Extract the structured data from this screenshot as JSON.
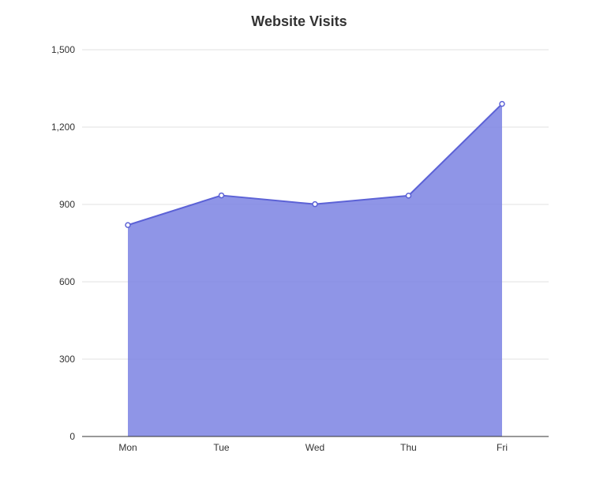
{
  "chart_data": {
    "type": "area",
    "title": "Website Visits",
    "xlabel": "",
    "ylabel": "",
    "categories": [
      "Mon",
      "Tue",
      "Wed",
      "Thu",
      "Fri"
    ],
    "values": [
      820,
      935,
      901,
      934,
      1290
    ],
    "ylim": [
      0,
      1500
    ],
    "y_ticks": [
      0,
      300,
      600,
      900,
      1200,
      1500
    ],
    "y_tick_labels": [
      "0",
      "300",
      "600",
      "900",
      "1,200",
      "1,500"
    ],
    "grid": true,
    "legend": "none",
    "colors": {
      "area_fill": "#7b82e3",
      "line": "#5c62d6",
      "point_fill": "#ffffff",
      "grid": "#e0e0e0",
      "axis": "#333333",
      "text": "#333333"
    }
  }
}
